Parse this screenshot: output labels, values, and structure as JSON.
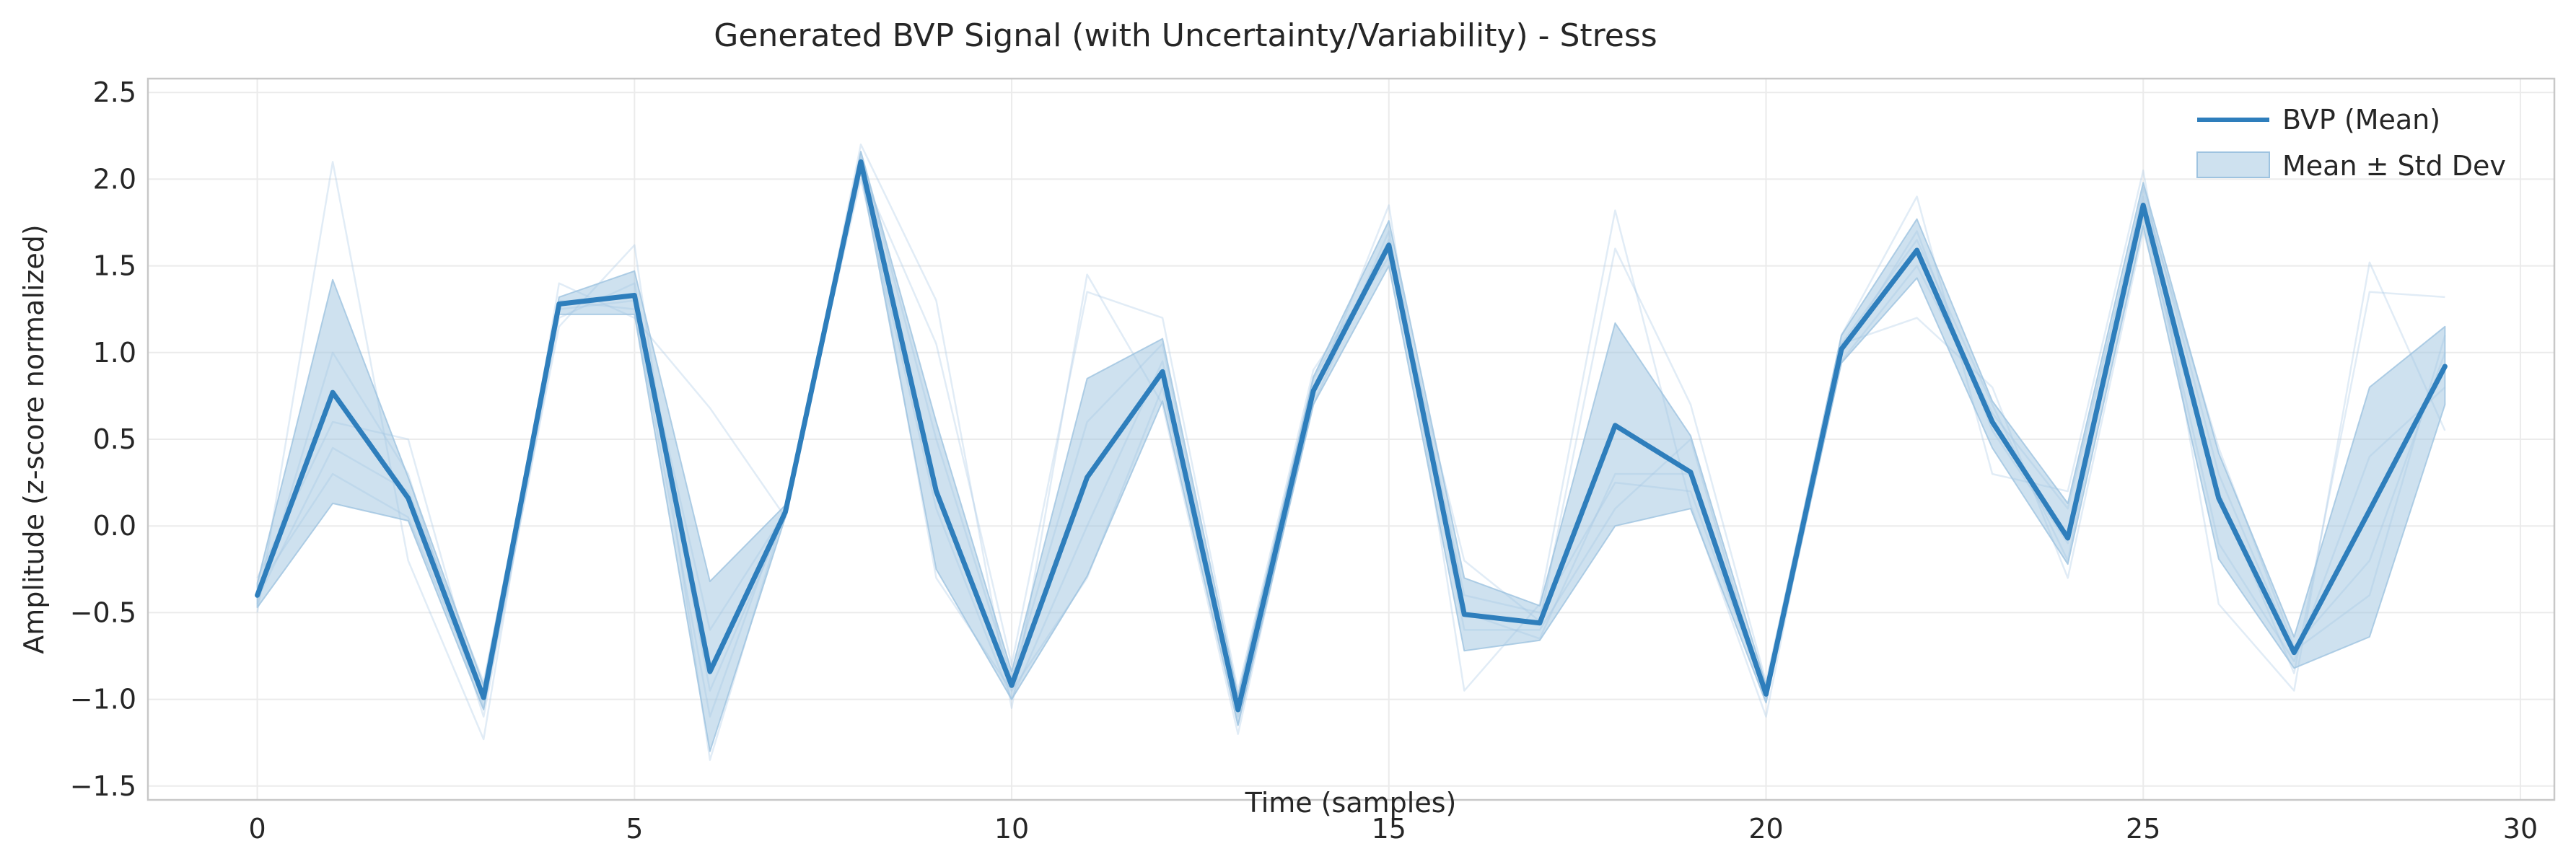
{
  "chart_data": {
    "type": "line",
    "title": "Generated BVP Signal (with Uncertainty/Variability) - Stress",
    "xlabel": "Time (samples)",
    "ylabel": "Amplitude (z-score normalized)",
    "xlim": [
      -1.45,
      30.45
    ],
    "ylim": [
      -1.58,
      2.58
    ],
    "xticks": [
      0,
      5,
      10,
      15,
      20,
      25,
      30
    ],
    "yticks": [
      -1.5,
      -1.0,
      -0.5,
      0.0,
      0.5,
      1.0,
      1.5,
      2.0,
      2.5
    ],
    "xtick_labels": [
      "0",
      "5",
      "10",
      "15",
      "20",
      "25",
      "30"
    ],
    "ytick_labels": [
      "−1.5",
      "−1.0",
      "−0.5",
      "0.0",
      "0.5",
      "1.0",
      "1.5",
      "2.0",
      "2.5"
    ],
    "grid": true,
    "legend_position": "top-right",
    "colors": {
      "mean": "#2e7ebc",
      "band": "#9ec3e0",
      "sample": "#a8c9e4"
    },
    "x": [
      0,
      1,
      2,
      3,
      4,
      5,
      6,
      7,
      8,
      9,
      10,
      11,
      12,
      13,
      14,
      15,
      16,
      17,
      18,
      19,
      20,
      21,
      22,
      23,
      24,
      25,
      26,
      27,
      28,
      29
    ],
    "series": [
      {
        "name": "BVP (Mean)",
        "values": [
          -0.4,
          0.77,
          0.16,
          -0.99,
          1.28,
          1.33,
          -0.84,
          0.08,
          2.1,
          0.2,
          -0.92,
          0.28,
          0.89,
          -1.06,
          0.78,
          1.62,
          -0.51,
          -0.56,
          0.58,
          0.31,
          -0.97,
          1.02,
          1.59,
          0.6,
          -0.07,
          1.85,
          0.16,
          -0.73,
          0.09,
          0.92
        ]
      }
    ],
    "band": {
      "name": "Mean ± Std Dev",
      "upper": [
        -0.33,
        1.42,
        0.28,
        -0.92,
        1.32,
        1.47,
        -0.32,
        0.12,
        2.16,
        0.6,
        -0.84,
        0.85,
        1.08,
        -0.98,
        0.86,
        1.76,
        -0.3,
        -0.46,
        1.17,
        0.52,
        -0.92,
        1.1,
        1.77,
        0.72,
        0.13,
        1.98,
        0.42,
        -0.64,
        0.8,
        1.15
      ],
      "lower": [
        -0.47,
        0.13,
        0.03,
        -1.06,
        1.22,
        1.22,
        -1.3,
        0.05,
        2.04,
        -0.25,
        -1.0,
        -0.29,
        0.72,
        -1.15,
        0.7,
        1.5,
        -0.72,
        -0.66,
        0.0,
        0.1,
        -1.02,
        0.94,
        1.43,
        0.45,
        -0.22,
        1.73,
        -0.19,
        -0.82,
        -0.64,
        0.7
      ]
    },
    "samples": [
      [
        -0.5,
        2.1,
        -0.2,
        -1.23,
        1.4,
        1.2,
        0.68,
        0.05,
        2.2,
        1.3,
        -1.05,
        1.45,
        0.7,
        -1.2,
        0.75,
        1.85,
        -0.95,
        -0.45,
        1.82,
        0.12,
        -1.1,
        1.1,
        1.9,
        0.3,
        0.2,
        2.05,
        -0.45,
        -0.95,
        1.52,
        0.55
      ],
      [
        -0.3,
        0.6,
        0.5,
        -1.05,
        1.15,
        1.62,
        -1.35,
        0.1,
        2.05,
        1.05,
        -0.8,
        1.35,
        1.2,
        -0.95,
        0.9,
        1.55,
        -0.2,
        -0.55,
        1.6,
        0.7,
        -0.9,
        1.05,
        1.2,
        0.8,
        -0.3,
        1.7,
        0.2,
        -0.85,
        1.35,
        1.32
      ],
      [
        -0.42,
        0.45,
        0.2,
        -0.9,
        1.25,
        1.3,
        -0.6,
        0.08,
        2.12,
        -0.3,
        -0.95,
        -0.3,
        0.8,
        -1.1,
        0.7,
        1.7,
        -0.6,
        -0.6,
        0.1,
        0.5,
        -1.0,
        0.95,
        1.5,
        0.65,
        0.1,
        1.9,
        0.45,
        -0.7,
        -0.2,
        1.0
      ],
      [
        -0.36,
        0.3,
        0.05,
        -1.0,
        1.3,
        1.25,
        -1.1,
        0.12,
        2.0,
        0.1,
        -1.0,
        0.0,
        0.95,
        -1.15,
        0.85,
        1.6,
        -0.5,
        -0.65,
        0.3,
        0.3,
        -0.95,
        1.0,
        1.7,
        0.55,
        -0.1,
        1.8,
        -0.1,
        -0.78,
        0.4,
        0.8
      ],
      [
        -0.45,
        1.0,
        0.3,
        -1.1,
        1.2,
        1.4,
        -0.95,
        0.06,
        2.15,
        0.5,
        -0.88,
        0.6,
        1.05,
        -1.05,
        0.8,
        1.65,
        -0.4,
        -0.5,
        0.25,
        0.2,
        -0.98,
        1.05,
        1.65,
        0.7,
        -0.2,
        1.95,
        0.3,
        -0.72,
        -0.4,
        1.1
      ]
    ]
  },
  "legend": {
    "mean_label": "BVP (Mean)",
    "band_label": "Mean ± Std Dev"
  }
}
